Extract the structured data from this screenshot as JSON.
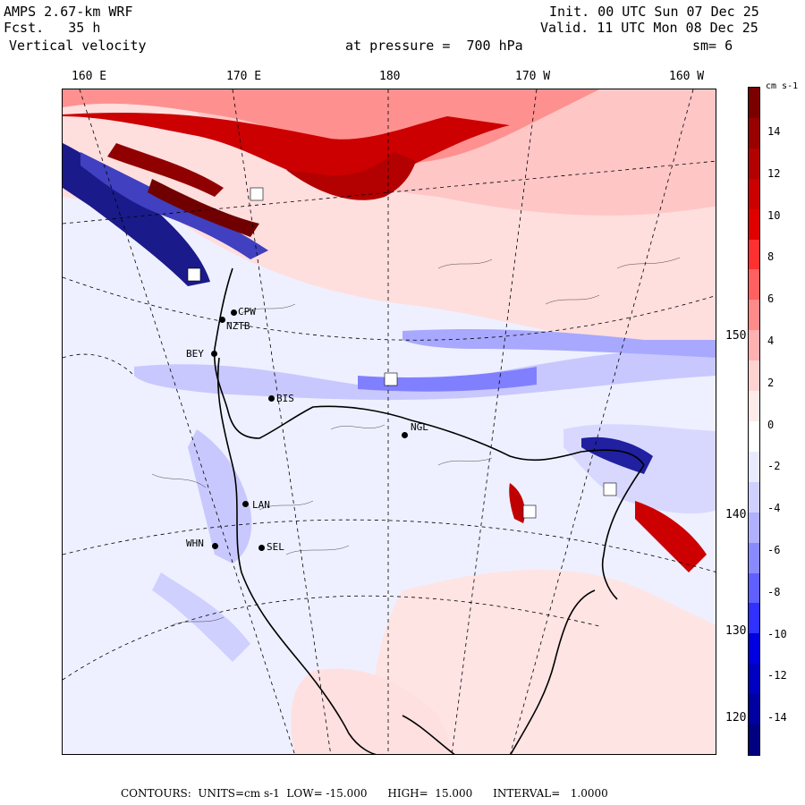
{
  "header": {
    "title": "AMPS 2.67-km WRF",
    "forecast": "Fcst.   35 h",
    "variable": "Vertical velocity",
    "pressure": "at pressure =  700 hPa",
    "init": "Init. 00 UTC Sun 07 Dec 25",
    "valid": "Valid. 11 UTC Mon 08 Dec 25",
    "smoothing": "sm= 6"
  },
  "longitude_labels": [
    "160 E",
    "170 E",
    "180",
    "170 W",
    "160 W"
  ],
  "latitude_labels": [
    "150 W",
    "140 W",
    "130 W",
    "120 W"
  ],
  "stations": [
    "CPW",
    "NZTB",
    "BEY",
    "BIS",
    "NGL",
    "LAN",
    "WHN",
    "SEL"
  ],
  "colorbar": {
    "unit": "cm s-1",
    "ticks": [
      "14",
      "12",
      "10",
      "8",
      "6",
      "4",
      "2",
      "0",
      "-2",
      "-4",
      "-6",
      "-8",
      "-10",
      "-12",
      "-14"
    ],
    "colors": [
      "#7a0000",
      "#990000",
      "#b30000",
      "#cc0000",
      "#e00000",
      "#ff3030",
      "#ff6060",
      "#ff8a8a",
      "#ffb0b0",
      "#ffd2d2",
      "#ffeaea",
      "#ffffff",
      "#eaeaff",
      "#d0d0ff",
      "#b0b0ff",
      "#8a8aff",
      "#6060ff",
      "#3030ff",
      "#0000e0",
      "#0000c0",
      "#0000a0",
      "#000080"
    ]
  },
  "footer": "CONTOURS:  UNITS=cm s-1  LOW= -15.000      HIGH=  15.000      INTERVAL=   1.0000"
}
